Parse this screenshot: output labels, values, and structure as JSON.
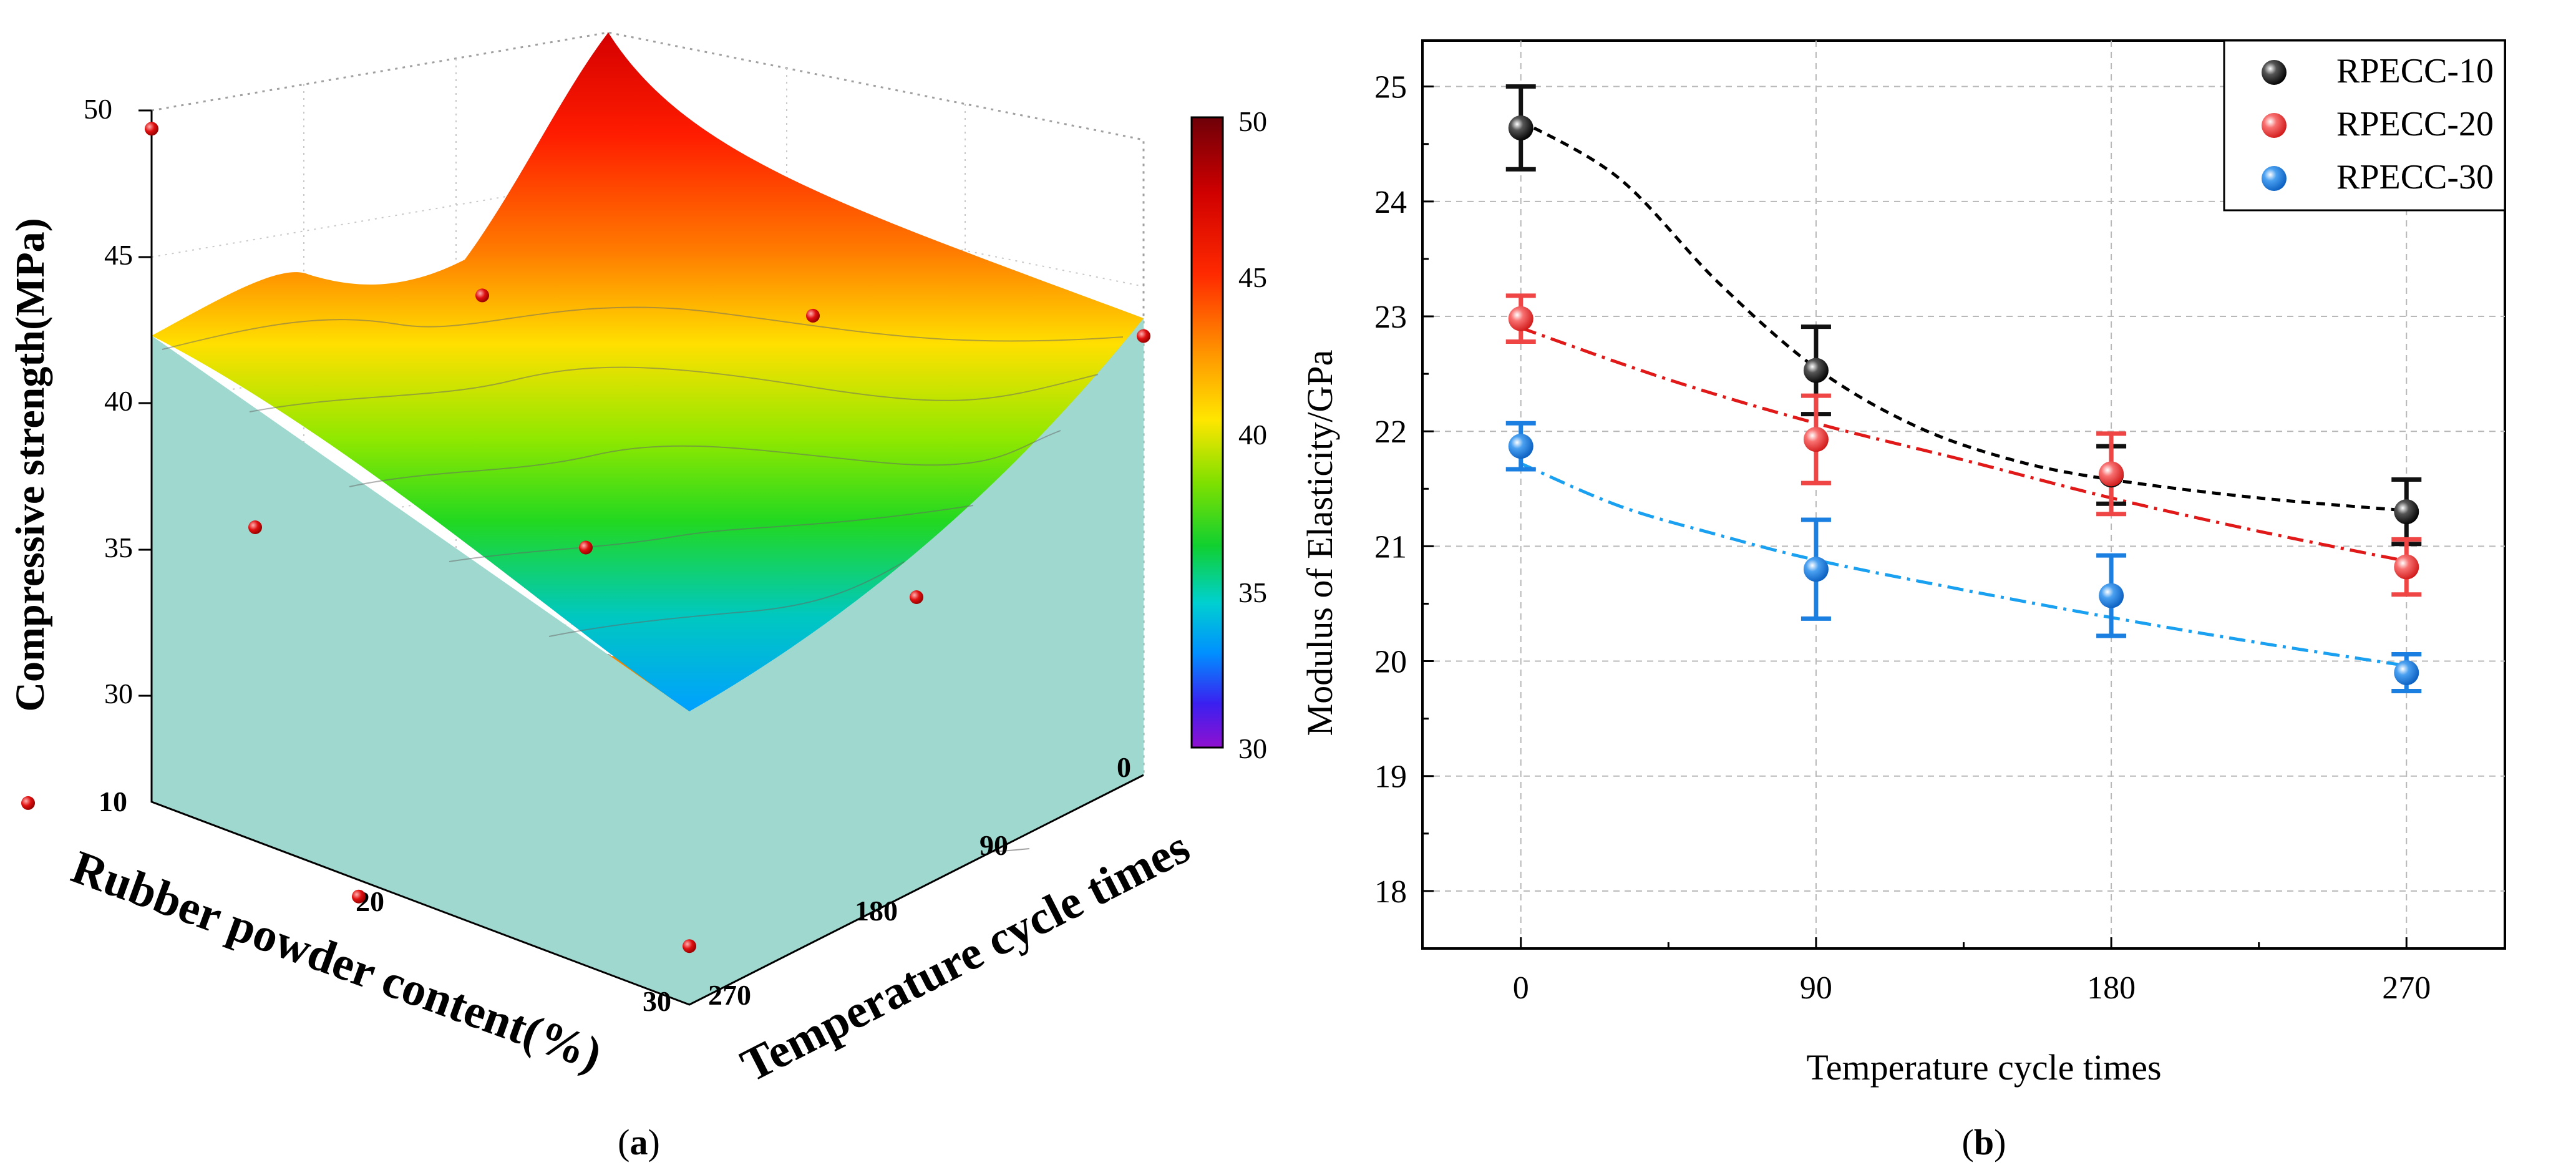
{
  "colors": {
    "rpecc10": "#111111",
    "rpecc20": "#f04545",
    "rpecc30": "#1a7fe0",
    "fit10": "#000000",
    "fit20": "#e01818",
    "fit30": "#1aa0f0",
    "curtain": "#9fd8cf",
    "grid": "#b8b8b8"
  },
  "panels": {
    "a": {
      "caption_open": "(",
      "caption_letter": "a",
      "caption_close": ")"
    },
    "b": {
      "caption_open": "(",
      "caption_letter": "b",
      "caption_close": ")"
    }
  },
  "chart_data": [
    {
      "panel": "a",
      "type": "surface3d",
      "zlabel": "Compressive strength(MPa)",
      "xlabel": "Rubber powder content(%)",
      "ylabel": "Temperature cycle times",
      "x_ticks": [
        "10",
        "20",
        "30"
      ],
      "y_ticks": [
        "0",
        "90",
        "180",
        "270"
      ],
      "z_ticks": [
        "30",
        "35",
        "40",
        "45",
        "50"
      ],
      "zlim": [
        27,
        50
      ],
      "colorbar": {
        "min": 30,
        "max": 50,
        "ticks": [
          "50",
          "45",
          "40",
          "35",
          "30"
        ]
      },
      "rubber_content": [
        10,
        20,
        30
      ],
      "cycles": [
        0,
        90,
        180,
        270
      ],
      "strength": [
        [
          42.0,
          43.0,
          44.0,
          50.0
        ],
        [
          37.0,
          39.0,
          40.0,
          45.0
        ],
        [
          29.0,
          31.0,
          34.5,
          42.0
        ]
      ]
    },
    {
      "panel": "b",
      "type": "line",
      "xlabel": "Temperature cycle times",
      "ylabel": "Modulus of Elasticity/GPa",
      "x": [
        0,
        90,
        180,
        270
      ],
      "x_ticks": [
        "0",
        "90",
        "180",
        "270"
      ],
      "y_ticks": [
        "18",
        "19",
        "20",
        "21",
        "22",
        "23",
        "24",
        "25"
      ],
      "xlim": [
        -30,
        300
      ],
      "ylim": [
        17.5,
        25.4
      ],
      "legend_position": "top-right",
      "series": [
        {
          "name": "RPECC-10",
          "values": [
            24.64,
            22.53,
            21.62,
            21.3
          ],
          "errors": [
            0.36,
            0.38,
            0.25,
            0.28
          ],
          "fit": "dashed",
          "fit_points": [
            [
              0,
              24.7
            ],
            [
              30,
              24.2
            ],
            [
              60,
              23.3
            ],
            [
              90,
              22.55
            ],
            [
              120,
              22.05
            ],
            [
              150,
              21.75
            ],
            [
              180,
              21.58
            ],
            [
              225,
              21.42
            ],
            [
              270,
              21.31
            ]
          ]
        },
        {
          "name": "RPECC-20",
          "values": [
            22.98,
            21.93,
            21.63,
            20.82
          ],
          "errors": [
            0.2,
            0.38,
            0.35,
            0.24
          ],
          "fit": "dash-dot",
          "fit_points": [
            [
              0,
              22.9
            ],
            [
              45,
              22.45
            ],
            [
              90,
              22.07
            ],
            [
              135,
              21.75
            ],
            [
              180,
              21.42
            ],
            [
              225,
              21.13
            ],
            [
              270,
              20.87
            ]
          ]
        },
        {
          "name": "RPECC-30",
          "values": [
            21.87,
            20.8,
            20.57,
            19.9
          ],
          "errors": [
            0.2,
            0.43,
            0.35,
            0.16
          ],
          "fit": "dash-dot",
          "fit_points": [
            [
              0,
              21.72
            ],
            [
              30,
              21.35
            ],
            [
              60,
              21.1
            ],
            [
              90,
              20.88
            ],
            [
              135,
              20.62
            ],
            [
              180,
              20.38
            ],
            [
              225,
              20.16
            ],
            [
              270,
              19.96
            ]
          ]
        }
      ]
    }
  ]
}
